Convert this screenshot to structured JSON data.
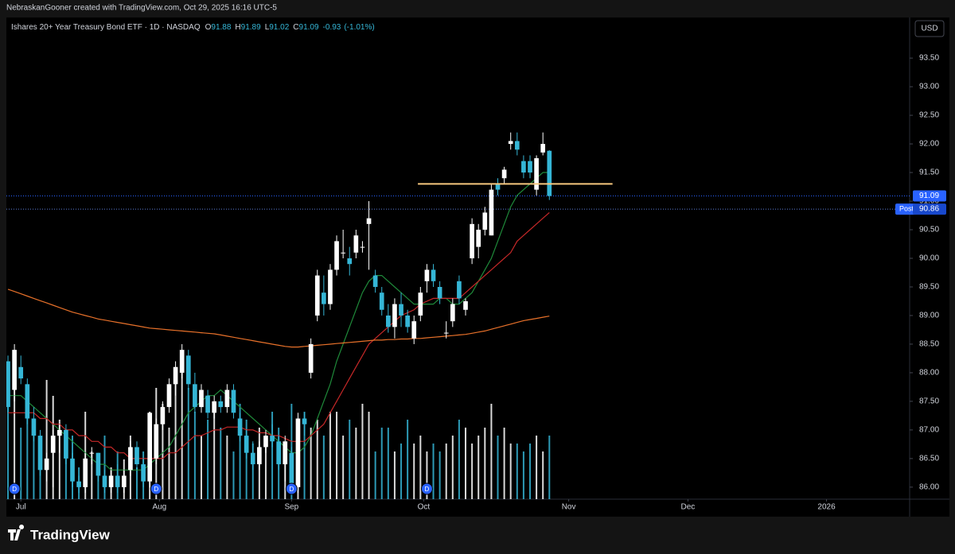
{
  "chart_data": {
    "type": "candlestick",
    "credit": "NebraskanGooner created with TradingView.com, Oct 29, 2025 16:16 UTC-5",
    "symbol": "Ishares 20+ Year Treasury Bond ETF · 1D · NASDAQ",
    "legend": {
      "letters": [
        "O",
        "H",
        "L",
        "C"
      ],
      "change": -0.93,
      "change_pct": {
        "value": -1.01,
        "label": "(-1.01%)"
      }
    },
    "currency": "USD",
    "brand": "TradingView",
    "up_color": "#ffffff",
    "down_color": "#35b6d6",
    "open": [
      88.2,
      87.7,
      88.1,
      87.8,
      87.2,
      86.9,
      86.3,
      86.6,
      86.9,
      87.0,
      86.5,
      86.1,
      86.0,
      86.6,
      86.6,
      86.2,
      86.0,
      86.2,
      86.0,
      86.3,
      86.7,
      86.4,
      86.1,
      86.5,
      87.1,
      87.4,
      87.8,
      88.0,
      88.3,
      87.8,
      87.4,
      87.6,
      87.3,
      87.5,
      87.4,
      87.7,
      87.2,
      86.9,
      86.6,
      86.4,
      86.7,
      86.9,
      86.8,
      86.4,
      86.6,
      86.0,
      87.2,
      88.0,
      89.0,
      89.4,
      89.2,
      89.8,
      90.1,
      90.0,
      90.1,
      90.2,
      90.6,
      89.7,
      89.4,
      89.0,
      88.8,
      89.2,
      89.0,
      88.6,
      89.0,
      89.6,
      89.8,
      89.5,
      88.7,
      88.9,
      89.6,
      89.1,
      90.0,
      90.2,
      90.5,
      90.4,
      91.3,
      91.4,
      92.0,
      92.05,
      91.7,
      91.7,
      91.2,
      91.85,
      91.88
    ],
    "high": [
      88.3,
      88.5,
      88.3,
      87.9,
      87.4,
      87.0,
      86.6,
      87.0,
      87.1,
      87.1,
      86.6,
      86.2,
      86.6,
      86.7,
      86.6,
      86.3,
      86.3,
      86.4,
      86.3,
      86.8,
      86.8,
      86.5,
      87.3,
      87.2,
      87.5,
      87.9,
      88.2,
      88.5,
      88.4,
      88.0,
      87.8,
      87.7,
      87.6,
      87.6,
      87.8,
      87.8,
      87.3,
      87.0,
      86.8,
      86.8,
      87.0,
      87.1,
      86.9,
      86.9,
      86.7,
      87.3,
      87.3,
      88.6,
      89.8,
      89.7,
      89.9,
      90.4,
      90.5,
      90.2,
      90.5,
      90.3,
      91.0,
      89.8,
      89.5,
      89.2,
      89.3,
      89.4,
      89.1,
      89.0,
      89.5,
      89.9,
      89.9,
      89.6,
      88.9,
      89.3,
      89.7,
      89.3,
      90.7,
      90.6,
      90.9,
      91.3,
      91.4,
      91.6,
      92.2,
      92.2,
      91.8,
      91.8,
      91.8,
      92.2,
      91.89
    ],
    "low": [
      87.3,
      87.5,
      87.8,
      87.1,
      86.8,
      86.2,
      86.1,
      86.0,
      86.6,
      86.4,
      86.0,
      85.9,
      85.9,
      86.4,
      86.1,
      85.9,
      85.9,
      85.9,
      85.9,
      86.2,
      86.3,
      86.0,
      86.0,
      86.4,
      87.0,
      87.3,
      87.6,
      87.9,
      87.7,
      87.3,
      87.3,
      87.2,
      87.2,
      87.3,
      87.3,
      87.2,
      86.8,
      86.5,
      86.3,
      86.3,
      86.6,
      86.7,
      86.3,
      86.1,
      85.9,
      85.9,
      86.9,
      87.9,
      88.9,
      89.0,
      89.1,
      89.7,
      90.0,
      89.7,
      90.0,
      90.1,
      89.8,
      89.4,
      89.0,
      88.7,
      88.6,
      88.8,
      88.7,
      88.5,
      88.9,
      89.4,
      89.5,
      89.2,
      88.6,
      88.8,
      89.2,
      89.0,
      89.9,
      90.0,
      90.4,
      90.4,
      91.1,
      91.3,
      91.9,
      91.8,
      91.4,
      91.4,
      91.1,
      91.8,
      91.02
    ],
    "close": [
      87.4,
      88.4,
      87.9,
      87.2,
      86.9,
      86.3,
      86.5,
      86.9,
      87.0,
      86.5,
      86.1,
      86.0,
      86.5,
      86.6,
      86.2,
      86.0,
      86.2,
      86.0,
      86.2,
      86.7,
      86.4,
      86.1,
      87.3,
      87.1,
      87.4,
      87.8,
      88.1,
      88.4,
      87.8,
      87.4,
      87.7,
      87.3,
      87.5,
      87.4,
      87.7,
      87.3,
      86.9,
      86.6,
      86.4,
      86.7,
      86.9,
      86.8,
      86.4,
      86.8,
      86.0,
      87.2,
      87.1,
      88.5,
      89.7,
      89.2,
      89.8,
      90.3,
      90.1,
      89.9,
      90.4,
      90.2,
      90.7,
      89.5,
      89.1,
      88.8,
      89.2,
      89.0,
      88.8,
      88.9,
      89.4,
      89.8,
      89.6,
      89.3,
      88.7,
      89.2,
      89.3,
      89.25,
      90.6,
      90.5,
      90.8,
      91.2,
      91.2,
      91.55,
      92.05,
      91.9,
      91.5,
      91.5,
      91.75,
      92.0,
      91.09
    ],
    "volume": [
      75,
      90,
      45,
      55,
      40,
      30,
      75,
      65,
      50,
      35,
      40,
      20,
      55,
      30,
      25,
      40,
      20,
      30,
      25,
      40,
      20,
      30,
      55,
      70,
      60,
      45,
      75,
      90,
      70,
      55,
      40,
      50,
      60,
      45,
      40,
      30,
      60,
      50,
      35,
      45,
      40,
      55,
      45,
      35,
      60,
      50,
      55,
      45,
      50,
      40,
      55,
      55,
      40,
      50,
      45,
      60,
      55,
      30,
      45,
      45,
      30,
      35,
      50,
      35,
      40,
      30,
      35,
      30,
      35,
      40,
      50,
      45,
      35,
      40,
      45,
      60,
      40,
      45,
      35,
      35,
      30,
      35,
      40,
      30,
      40
    ],
    "ma_lines": [
      {
        "color": "#1f8a3a",
        "values": [
          87.6,
          87.6,
          87.6,
          87.5,
          87.4,
          87.3,
          87.2,
          87.1,
          87.0,
          86.9,
          86.8,
          86.7,
          86.6,
          86.5,
          86.4,
          86.4,
          86.3,
          86.3,
          86.3,
          86.3,
          86.3,
          86.3,
          86.4,
          86.5,
          86.6,
          86.7,
          86.9,
          87.1,
          87.3,
          87.4,
          87.5,
          87.6,
          87.6,
          87.7,
          87.6,
          87.5,
          87.4,
          87.3,
          87.2,
          87.1,
          87.0,
          86.9,
          86.8,
          86.7,
          86.6,
          86.6,
          86.7,
          86.9,
          87.2,
          87.5,
          87.8,
          88.2,
          88.5,
          88.8,
          89.1,
          89.4,
          89.6,
          89.7,
          89.7,
          89.6,
          89.5,
          89.4,
          89.3,
          89.2,
          89.2,
          89.2,
          89.2,
          89.3,
          89.3,
          89.2,
          89.2,
          89.3,
          89.4,
          89.6,
          89.8,
          90.0,
          90.3,
          90.6,
          90.9,
          91.1,
          91.2,
          91.3,
          91.4,
          91.5,
          91.5
        ]
      },
      {
        "color": "#c62828",
        "values": [
          87.3,
          87.3,
          87.3,
          87.3,
          87.3,
          87.2,
          87.2,
          87.1,
          87.1,
          87.0,
          87.0,
          86.9,
          86.9,
          86.8,
          86.8,
          86.7,
          86.7,
          86.6,
          86.6,
          86.5,
          86.5,
          86.5,
          86.5,
          86.5,
          86.5,
          86.6,
          86.6,
          86.7,
          86.8,
          86.9,
          86.9,
          86.95,
          87.0,
          87.0,
          87.05,
          87.05,
          87.05,
          87.0,
          87.0,
          86.95,
          86.95,
          86.9,
          86.9,
          86.85,
          86.8,
          86.8,
          86.8,
          86.9,
          87.0,
          87.1,
          87.3,
          87.5,
          87.7,
          87.9,
          88.1,
          88.3,
          88.5,
          88.6,
          88.7,
          88.8,
          88.9,
          89.0,
          89.05,
          89.1,
          89.2,
          89.25,
          89.3,
          89.3,
          89.3,
          89.3,
          89.3,
          89.4,
          89.5,
          89.6,
          89.7,
          89.8,
          89.9,
          90.0,
          90.1,
          90.3,
          90.4,
          90.5,
          90.6,
          90.7,
          90.8
        ]
      },
      {
        "color": "#e8712a",
        "values": [
          89.46,
          89.42,
          89.38,
          89.34,
          89.3,
          89.26,
          89.22,
          89.18,
          89.14,
          89.1,
          89.06,
          89.03,
          89.0,
          88.97,
          88.94,
          88.92,
          88.9,
          88.88,
          88.86,
          88.84,
          88.82,
          88.8,
          88.78,
          88.77,
          88.76,
          88.75,
          88.74,
          88.73,
          88.72,
          88.71,
          88.7,
          88.69,
          88.68,
          88.66,
          88.64,
          88.62,
          88.6,
          88.58,
          88.56,
          88.54,
          88.52,
          88.5,
          88.48,
          88.46,
          88.45,
          88.45,
          88.46,
          88.47,
          88.48,
          88.49,
          88.5,
          88.51,
          88.52,
          88.53,
          88.54,
          88.55,
          88.56,
          88.57,
          88.57,
          88.58,
          88.58,
          88.59,
          88.59,
          88.6,
          88.6,
          88.61,
          88.62,
          88.63,
          88.64,
          88.65,
          88.66,
          88.67,
          88.69,
          88.71,
          88.73,
          88.76,
          88.79,
          88.82,
          88.85,
          88.88,
          88.91,
          88.93,
          88.95,
          88.97,
          88.99
        ]
      }
    ],
    "level": {
      "value": 91.3,
      "from": 63.6,
      "to": 93.8,
      "color": "#f5c77e"
    },
    "last_price": 91.09,
    "post": {
      "label": "Post",
      "value": 90.86
    },
    "dividend": {
      "label": "D",
      "bars": [
        1,
        23,
        44,
        65
      ]
    },
    "xlim": [
      -0.25,
      139.9
    ],
    "xticks": [
      {
        "value": 2,
        "label": "Jul"
      },
      {
        "value": 23.5,
        "label": "Aug"
      },
      {
        "value": 44,
        "label": "Sep"
      },
      {
        "value": 64.5,
        "label": "Oct"
      },
      {
        "value": 87,
        "label": "Nov"
      },
      {
        "value": 105.5,
        "label": "Dec"
      },
      {
        "value": 127,
        "label": "2026"
      }
    ],
    "ylim": [
      85.79,
      94.21
    ],
    "yticks": [
      {
        "value": 86,
        "label": "86.00"
      },
      {
        "value": 86.5,
        "label": "86.50"
      },
      {
        "value": 87,
        "label": "87.00"
      },
      {
        "value": 87.5,
        "label": "87.50"
      },
      {
        "value": 88,
        "label": "88.00"
      },
      {
        "value": 88.5,
        "label": "88.50"
      },
      {
        "value": 89,
        "label": "89.00"
      },
      {
        "value": 89.5,
        "label": "89.50"
      },
      {
        "value": 90,
        "label": "90.00"
      },
      {
        "value": 90.5,
        "label": "90.50"
      },
      {
        "value": 91,
        "label": "91.00"
      },
      {
        "value": 91.5,
        "label": "91.50"
      },
      {
        "value": 92,
        "label": "92.00"
      },
      {
        "value": 92.5,
        "label": "92.50"
      },
      {
        "value": 93,
        "label": "93.00"
      },
      {
        "value": 93.5,
        "label": "93.50"
      }
    ]
  }
}
